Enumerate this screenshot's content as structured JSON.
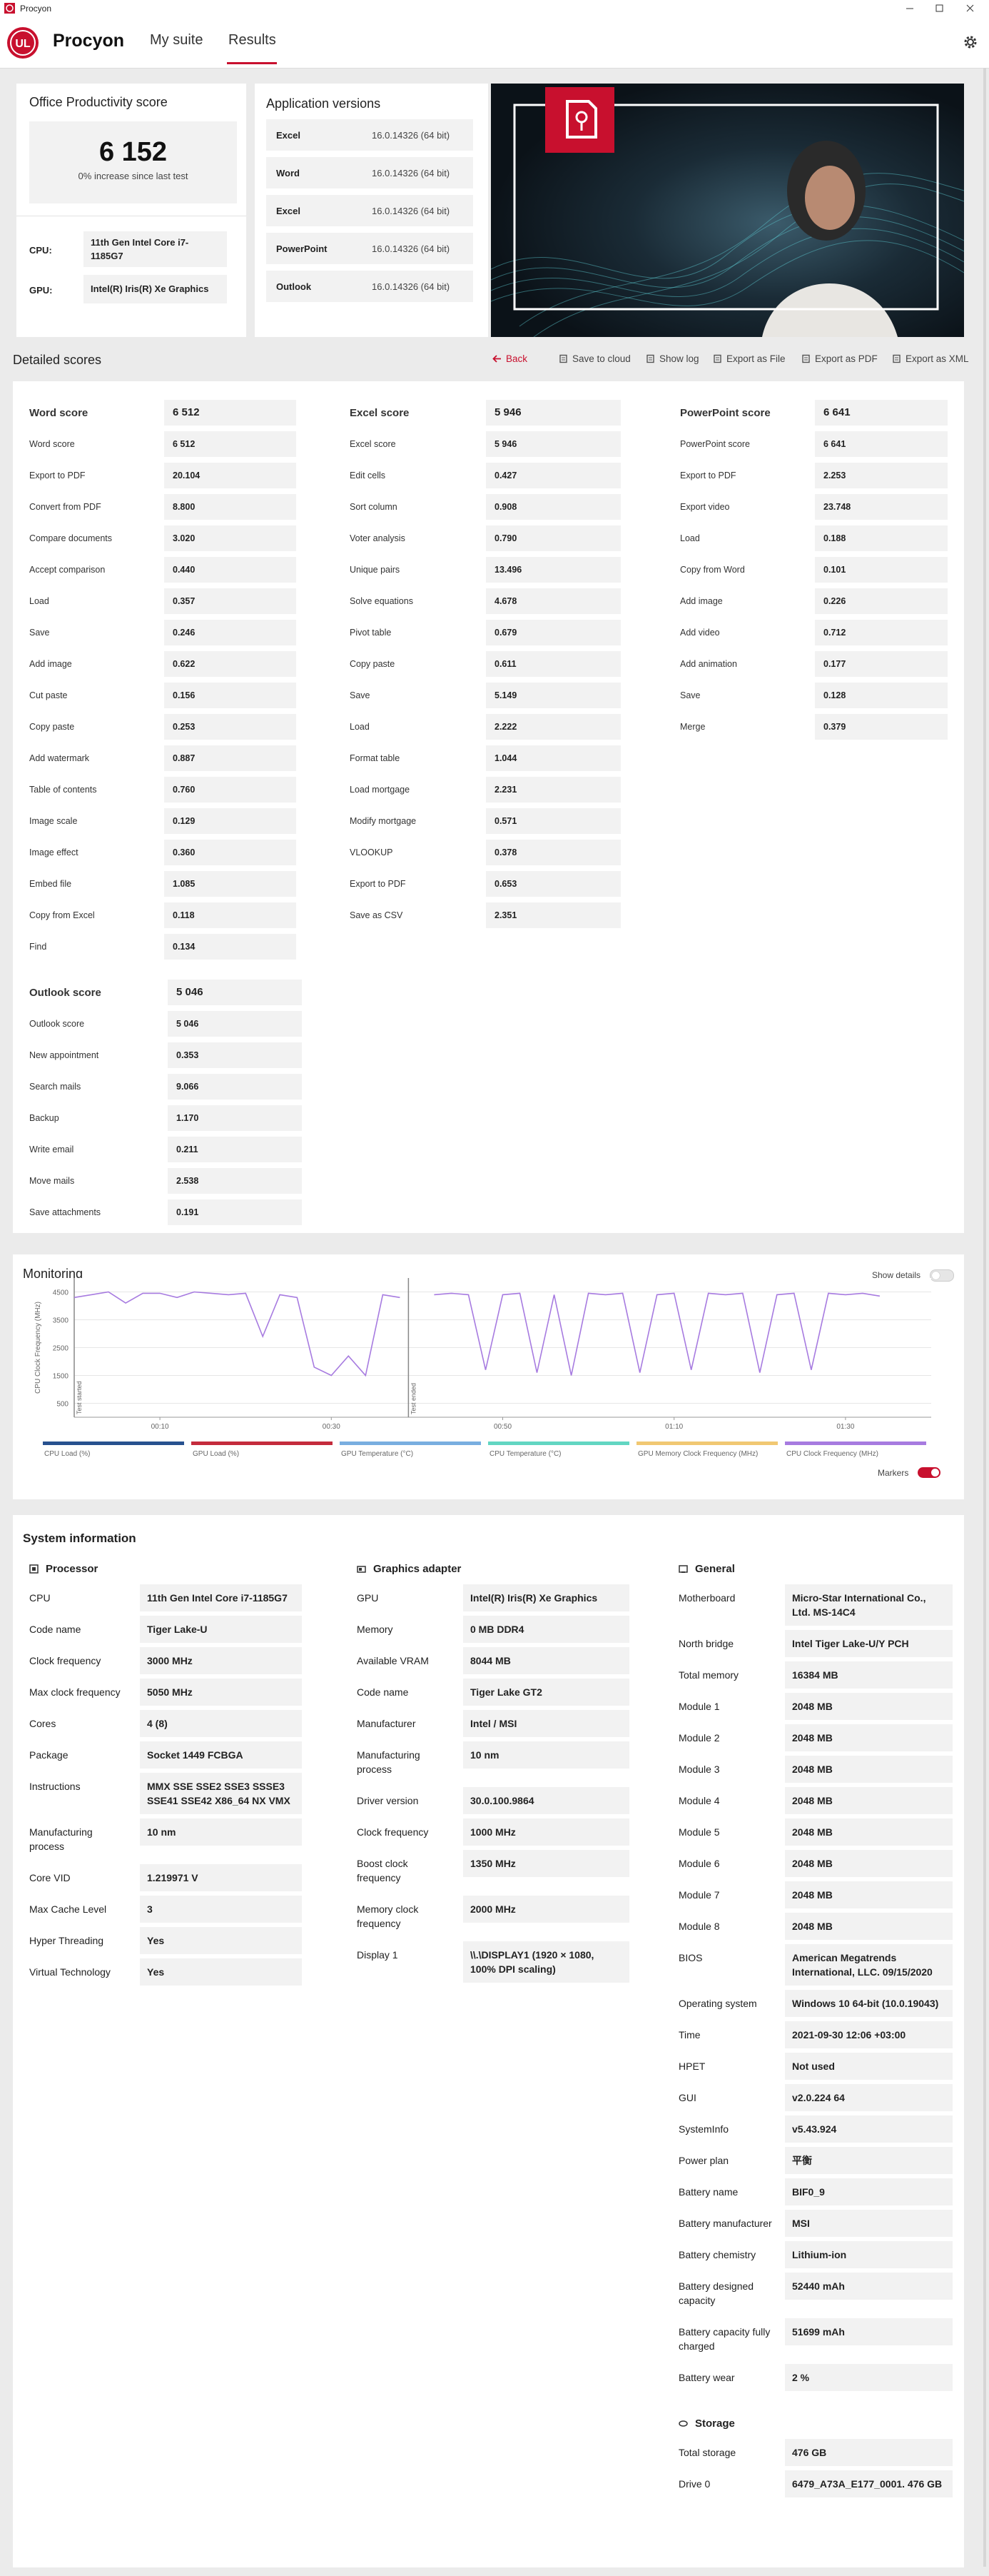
{
  "window": {
    "title": "Procyon"
  },
  "nav": {
    "logo": "UL",
    "brand": "Procyon",
    "tabs": [
      "My suite",
      "Results"
    ]
  },
  "summary": {
    "title": "Office Productivity score",
    "score": "6 152",
    "change": "0% increase since last test",
    "cpu_label": "CPU:",
    "cpu": "11th Gen Intel Core i7-1185G7",
    "gpu_label": "GPU:",
    "gpu": "Intel(R) Iris(R) Xe Graphics"
  },
  "app_versions": {
    "title": "Application versions",
    "rows": [
      [
        "Excel",
        "16.0.14326 (64 bit)"
      ],
      [
        "Word",
        "16.0.14326 (64 bit)"
      ],
      [
        "Excel",
        "16.0.14326 (64 bit)"
      ],
      [
        "PowerPoint",
        "16.0.14326 (64 bit)"
      ],
      [
        "Outlook",
        "16.0.14326 (64 bit)"
      ]
    ]
  },
  "detailed": {
    "title": "Detailed scores",
    "actions": [
      "Back",
      "Save to cloud",
      "Show log",
      "Export as File",
      "Export as PDF",
      "Export as XML"
    ],
    "groups": [
      {
        "name": "Word score",
        "score": "6 512",
        "rows": [
          [
            "Word score",
            "6 512"
          ],
          [
            "Export to PDF",
            "20.104"
          ],
          [
            "Convert from PDF",
            "8.800"
          ],
          [
            "Compare documents",
            "3.020"
          ],
          [
            "Accept comparison",
            "0.440"
          ],
          [
            "Load",
            "0.357"
          ],
          [
            "Save",
            "0.246"
          ],
          [
            "Add image",
            "0.622"
          ],
          [
            "Cut paste",
            "0.156"
          ],
          [
            "Copy paste",
            "0.253"
          ],
          [
            "Add watermark",
            "0.887"
          ],
          [
            "Table of contents",
            "0.760"
          ],
          [
            "Image scale",
            "0.129"
          ],
          [
            "Image effect",
            "0.360"
          ],
          [
            "Embed file",
            "1.085"
          ],
          [
            "Copy from Excel",
            "0.118"
          ],
          [
            "Find",
            "0.134"
          ]
        ]
      },
      {
        "name": "Excel score",
        "score": "5 946",
        "rows": [
          [
            "Excel score",
            "5 946"
          ],
          [
            "Edit cells",
            "0.427"
          ],
          [
            "Sort column",
            "0.908"
          ],
          [
            "Voter analysis",
            "0.790"
          ],
          [
            "Unique pairs",
            "13.496"
          ],
          [
            "Solve equations",
            "4.678"
          ],
          [
            "Pivot table",
            "0.679"
          ],
          [
            "Copy paste",
            "0.611"
          ],
          [
            "Save",
            "5.149"
          ],
          [
            "Load",
            "2.222"
          ],
          [
            "Format table",
            "1.044"
          ],
          [
            "Load mortgage",
            "2.231"
          ],
          [
            "Modify mortgage",
            "0.571"
          ],
          [
            "VLOOKUP",
            "0.378"
          ],
          [
            "Export to PDF",
            "0.653"
          ],
          [
            "Save as CSV",
            "2.351"
          ]
        ]
      },
      {
        "name": "PowerPoint score",
        "score": "6 641",
        "rows": [
          [
            "PowerPoint score",
            "6 641"
          ],
          [
            "Export to PDF",
            "2.253"
          ],
          [
            "Export video",
            "23.748"
          ],
          [
            "Load",
            "0.188"
          ],
          [
            "Copy from Word",
            "0.101"
          ],
          [
            "Add image",
            "0.226"
          ],
          [
            "Add video",
            "0.712"
          ],
          [
            "Add animation",
            "0.177"
          ],
          [
            "Save",
            "0.128"
          ],
          [
            "Merge",
            "0.379"
          ]
        ]
      },
      {
        "name": "Outlook score",
        "score": "5 046",
        "rows": [
          [
            "Outlook score",
            "5 046"
          ],
          [
            "New appointment",
            "0.353"
          ],
          [
            "Search mails",
            "9.066"
          ],
          [
            "Backup",
            "1.170"
          ],
          [
            "Write email",
            "0.211"
          ],
          [
            "Move mails",
            "2.538"
          ],
          [
            "Save attachments",
            "0.191"
          ]
        ]
      }
    ]
  },
  "monitoring": {
    "title": "Monitoring",
    "show_details": "Show details",
    "markers": "Markers"
  },
  "chart_data": {
    "type": "line",
    "y_label": "CPU Clock Frequency (MHz)",
    "x": [
      0,
      2,
      4,
      6,
      8,
      10,
      12,
      14,
      16,
      18,
      20,
      22,
      24,
      26,
      28,
      30,
      32,
      34,
      36,
      38,
      40,
      42,
      44,
      46,
      48,
      50,
      52,
      54,
      56,
      58,
      60,
      62,
      64,
      66,
      68,
      70,
      72,
      74,
      76,
      78,
      80,
      82,
      84,
      86,
      88,
      90,
      92,
      94
    ],
    "series": [
      {
        "color": "#a77be0",
        "values": [
          4300,
          4400,
          4500,
          4100,
          4450,
          4450,
          4300,
          4500,
          4450,
          4400,
          4450,
          2900,
          4400,
          4300,
          1800,
          1500,
          2200,
          1500,
          4400,
          4300,
          null,
          4400,
          4450,
          4400,
          1700,
          4400,
          4450,
          1600,
          4400,
          1500,
          4450,
          4400,
          4450,
          1600,
          4400,
          4450,
          1700,
          4450,
          4400,
          4450,
          1600,
          4400,
          4450,
          1700,
          4450,
          4400,
          4450,
          4350
        ]
      }
    ],
    "xlim": [
      0,
      100
    ],
    "xticks": [
      {
        "value": 10,
        "label": "00:10"
      },
      {
        "value": 30,
        "label": "00:30"
      },
      {
        "value": 50,
        "label": "00:50"
      },
      {
        "value": 70,
        "label": "01:10"
      },
      {
        "value": 90,
        "label": "01:30"
      }
    ],
    "ylim": [
      0,
      5000
    ],
    "yticks": [
      500,
      1500,
      2500,
      3500,
      4500
    ],
    "grid": true,
    "annotations": [
      {
        "text": "Test started",
        "x": 0
      },
      {
        "text": "Test ended",
        "x": 39
      }
    ],
    "legend": [
      {
        "name": "CPU Load (%)",
        "color": "#27518f"
      },
      {
        "name": "GPU Load (%)",
        "color": "#c42b3c"
      },
      {
        "name": "GPU Temperature (°C)",
        "color": "#79aee0"
      },
      {
        "name": "CPU Temperature (°C)",
        "color": "#62d6c2"
      },
      {
        "name": "GPU Memory Clock Frequency (MHz)",
        "color": "#f1c872"
      },
      {
        "name": "CPU Clock Frequency (MHz)",
        "color": "#a77be0"
      }
    ]
  },
  "system_info": {
    "title": "System information",
    "sections": [
      {
        "name": "Processor",
        "rows": [
          [
            "CPU",
            "11th Gen Intel Core i7-1185G7"
          ],
          [
            "Code name",
            "Tiger Lake-U"
          ],
          [
            "Clock frequency",
            "3000 MHz"
          ],
          [
            "Max clock frequency",
            "5050 MHz"
          ],
          [
            "Cores",
            "4 (8)"
          ],
          [
            "Package",
            "Socket 1449 FCBGA"
          ],
          [
            "Instructions",
            "MMX SSE SSE2 SSE3 SSSE3 SSE41 SSE42 X86_64 NX VMX"
          ],
          [
            "Manufacturing process",
            "10 nm"
          ],
          [
            "Core VID",
            "1.219971 V"
          ],
          [
            "Max Cache Level",
            "3"
          ],
          [
            "Hyper Threading",
            "Yes"
          ],
          [
            "Virtual Technology",
            "Yes"
          ]
        ]
      },
      {
        "name": "Graphics adapter",
        "rows": [
          [
            "GPU",
            "Intel(R) Iris(R) Xe Graphics"
          ],
          [
            "Memory",
            "0 MB DDR4"
          ],
          [
            "Available VRAM",
            "8044 MB"
          ],
          [
            "Code name",
            "Tiger Lake GT2"
          ],
          [
            "Manufacturer",
            "Intel / MSI"
          ],
          [
            "Manufacturing process",
            "10 nm"
          ],
          [
            "Driver version",
            "30.0.100.9864"
          ],
          [
            "Clock frequency",
            "1000 MHz"
          ],
          [
            "Boost clock frequency",
            "1350 MHz"
          ],
          [
            "Memory clock frequency",
            "2000 MHz"
          ],
          [
            "Display 1",
            "\\\\.\\DISPLAY1 (1920 × 1080, 100% DPI scaling)"
          ]
        ]
      },
      {
        "name": "General",
        "rows": [
          [
            "Motherboard",
            "Micro-Star International Co., Ltd. MS-14C4"
          ],
          [
            "North bridge",
            "Intel Tiger Lake-U/Y PCH"
          ],
          [
            "Total memory",
            "16384 MB"
          ],
          [
            "Module 1",
            "2048 MB"
          ],
          [
            "Module 2",
            "2048 MB"
          ],
          [
            "Module 3",
            "2048 MB"
          ],
          [
            "Module 4",
            "2048 MB"
          ],
          [
            "Module 5",
            "2048 MB"
          ],
          [
            "Module 6",
            "2048 MB"
          ],
          [
            "Module 7",
            "2048 MB"
          ],
          [
            "Module 8",
            "2048 MB"
          ],
          [
            "BIOS",
            "American Megatrends International, LLC. 09/15/2020"
          ],
          [
            "Operating system",
            "Windows 10 64-bit (10.0.19043)"
          ],
          [
            "Time",
            "2021-09-30 12:06 +03:00"
          ],
          [
            "HPET",
            "Not used"
          ],
          [
            "GUI",
            "v2.0.224 64"
          ],
          [
            "SystemInfo",
            "v5.43.924"
          ],
          [
            "Power plan",
            "平衡"
          ],
          [
            "Battery name",
            "BIF0_9"
          ],
          [
            "Battery manufacturer",
            "MSI"
          ],
          [
            "Battery chemistry",
            "Lithium-ion"
          ],
          [
            "Battery designed capacity",
            "52440 mAh"
          ],
          [
            "Battery capacity fully charged",
            "51699 mAh"
          ],
          [
            "Battery wear",
            "2 %"
          ]
        ]
      },
      {
        "name": "Storage",
        "rows": [
          [
            "Total storage",
            "476 GB"
          ],
          [
            "Drive 0",
            "6479_A73A_E177_0001. 476 GB"
          ]
        ]
      }
    ]
  }
}
